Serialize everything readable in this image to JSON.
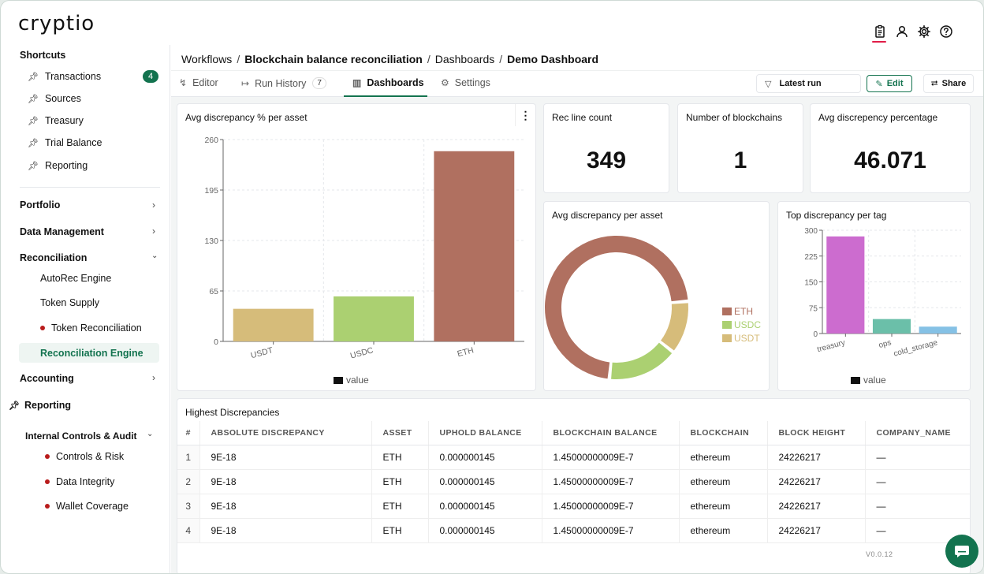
{
  "app": {
    "logo": "cryptio",
    "version": "V0.0.12"
  },
  "topbar": {
    "icons": [
      "clipboard-icon",
      "user-icon",
      "gear-icon",
      "help-icon"
    ]
  },
  "sidebar": {
    "shortcuts_title": "Shortcuts",
    "shortcuts": [
      {
        "label": "Transactions",
        "badge": "4"
      },
      {
        "label": "Sources"
      },
      {
        "label": "Treasury"
      },
      {
        "label": "Trial Balance"
      },
      {
        "label": "Reporting"
      }
    ],
    "sections": {
      "portfolio": "Portfolio",
      "data_management": "Data Management",
      "reconciliation": "Reconciliation",
      "accounting": "Accounting",
      "reporting": "Reporting",
      "internal_controls": "Internal Controls & Audit"
    },
    "reconciliation_items": [
      "AutoRec Engine",
      "Token Supply",
      "Token Reconciliation",
      "Reconciliation Engine"
    ],
    "internal_items": [
      "Controls & Risk",
      "Data Integrity",
      "Wallet Coverage"
    ]
  },
  "breadcrumb": [
    "Workflows",
    "Blockchain balance reconciliation",
    "Dashboards",
    "Demo Dashboard"
  ],
  "tabs": {
    "editor": "Editor",
    "run_history": "Run History",
    "run_history_count": "7",
    "dashboards": "Dashboards",
    "settings": "Settings"
  },
  "toolbar": {
    "filter": "Latest run",
    "edit": "Edit",
    "share": "Share"
  },
  "kpis": [
    {
      "title": "Rec line count",
      "value": "349"
    },
    {
      "title": "Number of blockchains",
      "value": "1"
    },
    {
      "title": "Avg discrepency percentage",
      "value": "46.071"
    }
  ],
  "chart_titles": {
    "bar1": "Avg discrepancy % per asset",
    "donut": "Avg discrepancy per asset",
    "bar2": "Top discrepancy per tag",
    "table": "Highest Discrepancies"
  },
  "chart_data": [
    {
      "type": "bar",
      "title": "Avg discrepancy % per asset",
      "categories": [
        "USDT",
        "USDC",
        "ETH"
      ],
      "series": [
        {
          "name": "value",
          "values": [
            42,
            58,
            245
          ]
        }
      ],
      "ylim": [
        0,
        260
      ],
      "yticks": [
        0,
        65,
        130,
        195,
        260
      ],
      "colors": [
        "#d6bc7a",
        "#abd071",
        "#b07060"
      ],
      "legend": "bottom",
      "grid": true
    },
    {
      "type": "pie",
      "title": "Avg discrepancy per asset",
      "categories": [
        "ETH",
        "USDC",
        "USDT"
      ],
      "values": [
        0.72,
        0.16,
        0.12
      ],
      "colors": [
        "#b07060",
        "#abd071",
        "#d6bc7a"
      ],
      "legend": "right"
    },
    {
      "type": "bar",
      "title": "Top discrepancy per tag",
      "categories": [
        "treasury",
        "ops",
        "cold_storage"
      ],
      "series": [
        {
          "name": "value",
          "values": [
            282,
            42,
            20
          ]
        }
      ],
      "ylim": [
        0,
        300
      ],
      "yticks": [
        0,
        75,
        150,
        225,
        300
      ],
      "colors": [
        "#cc6ccf",
        "#6bbfa9",
        "#85c1e5"
      ],
      "legend": "bottom",
      "grid": true
    }
  ],
  "table": {
    "columns": [
      "#",
      "ABSOLUTE DISCREPANCY",
      "ASSET",
      "UPHOLD BALANCE",
      "BLOCKCHAIN BALANCE",
      "BLOCKCHAIN",
      "BLOCK HEIGHT",
      "COMPANY_NAME"
    ],
    "rows": [
      [
        "1",
        "9E-18",
        "ETH",
        "0.000000145",
        "1.45000000009E-7",
        "ethereum",
        "24226217",
        "—"
      ],
      [
        "2",
        "9E-18",
        "ETH",
        "0.000000145",
        "1.45000000009E-7",
        "ethereum",
        "24226217",
        "—"
      ],
      [
        "3",
        "9E-18",
        "ETH",
        "0.000000145",
        "1.45000000009E-7",
        "ethereum",
        "24226217",
        "—"
      ],
      [
        "4",
        "9E-18",
        "ETH",
        "0.000000145",
        "1.45000000009E-7",
        "ethereum",
        "24226217",
        "—"
      ]
    ]
  }
}
